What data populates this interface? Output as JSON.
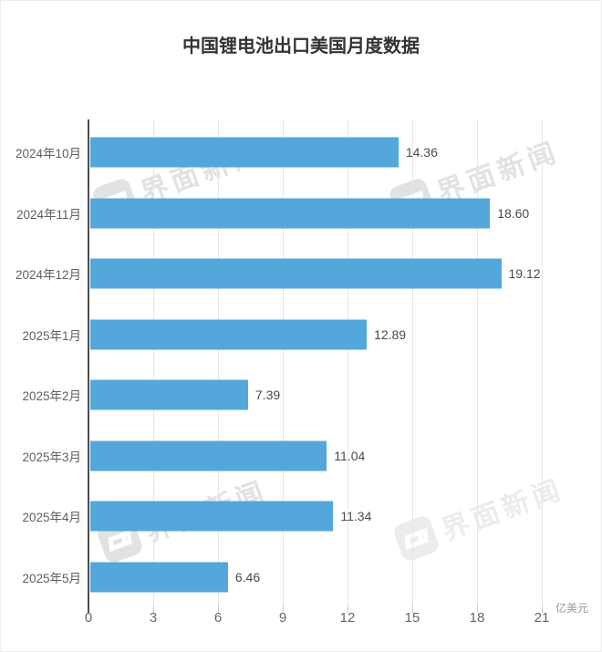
{
  "header": {
    "title": "中国锂电池出口美国月度数据"
  },
  "watermark": {
    "text": "界面新闻",
    "logo": "jiemian-logo",
    "color_strong": "#e2e2e2",
    "color_light": "#ececec"
  },
  "chart_data": {
    "type": "bar",
    "orientation": "horizontal",
    "title": "中国锂电池出口美国月度数据",
    "unit_label": "亿美元",
    "categories": [
      "2024年10月",
      "2024年11月",
      "2024年12月",
      "2025年1月",
      "2025年2月",
      "2025年3月",
      "2025年4月",
      "2025年5月"
    ],
    "values": [
      14.36,
      18.6,
      19.12,
      12.89,
      7.39,
      11.04,
      11.34,
      6.46
    ],
    "value_labels": [
      "14.36",
      "18.60",
      "19.12",
      "12.89",
      "7.39",
      "11.04",
      "11.34",
      "6.46"
    ],
    "x_ticks": [
      "0",
      "3",
      "6",
      "9",
      "12",
      "15",
      "18",
      "21"
    ],
    "x_tick_values": [
      0,
      3,
      6,
      9,
      12,
      15,
      18,
      21
    ],
    "xlim": [
      0,
      21
    ],
    "bar_color": "#54a7db",
    "grid": true,
    "legend": false
  }
}
